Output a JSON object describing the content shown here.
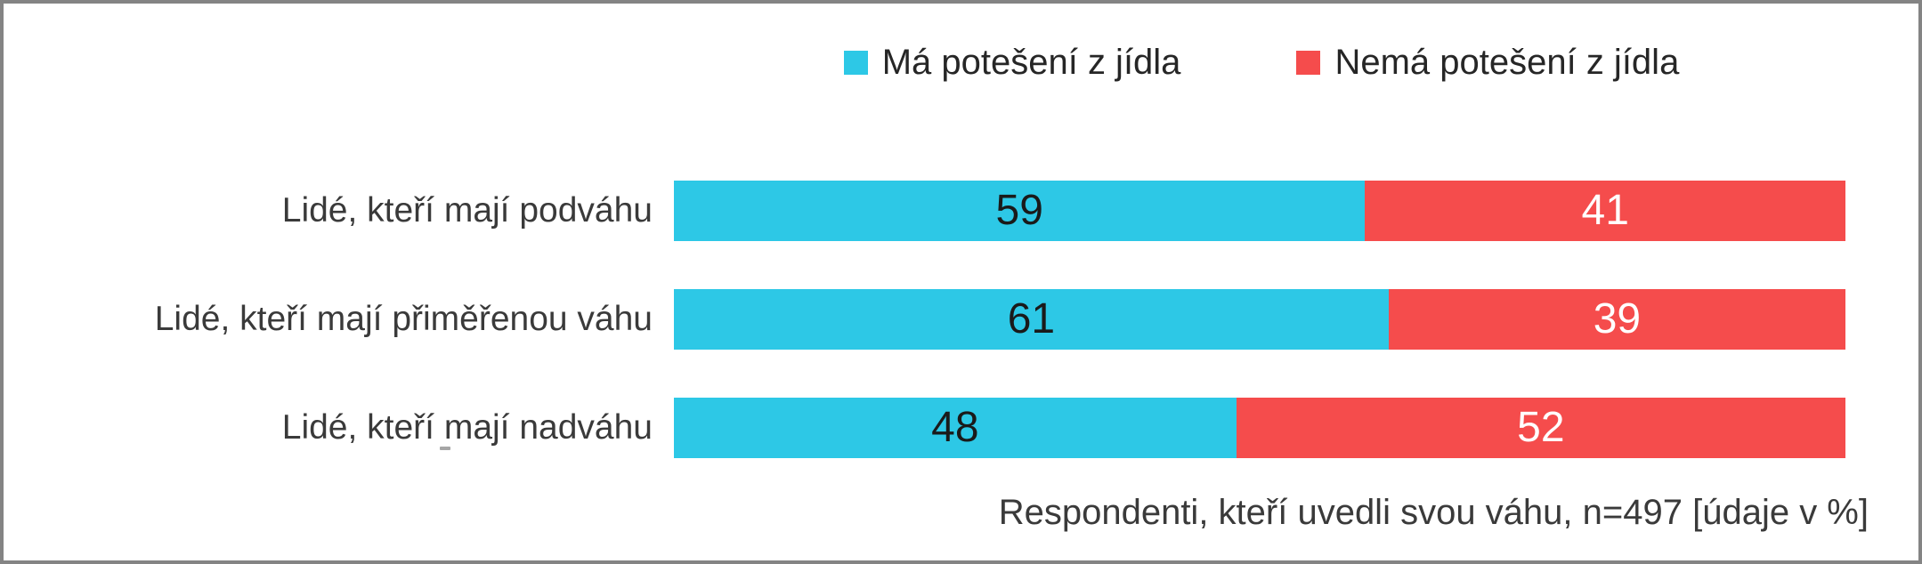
{
  "chart_data": {
    "type": "bar",
    "variant": "horizontal_stacked",
    "categories": [
      "Lidé, kteří mají podváhu",
      "Lidé, kteří mají přiměřenou váhu",
      "Lidé, kteří mají nadváhu"
    ],
    "series": [
      {
        "name": "Má potešení z jídla",
        "color": "#2DC8E6",
        "label_color": "#1A1A1A",
        "values": [
          59,
          61,
          48
        ]
      },
      {
        "name": "Nemá potešení z jídla",
        "color": "#F54C4C",
        "label_color": "#FFFFFF",
        "values": [
          41,
          39,
          52
        ]
      }
    ],
    "xlim": [
      0,
      100
    ],
    "grid": false,
    "value_labels": true,
    "legend_position": "top",
    "footnote": "Respondenti, kteří uvedli svou váhu, n=497 [údaje v %]"
  },
  "colors": {
    "background": "#FFFFFF",
    "border": "#848484",
    "legend_text": "#262626",
    "category_label_text": "#3A3A3A",
    "footnote_text": "#3A3A3A"
  }
}
